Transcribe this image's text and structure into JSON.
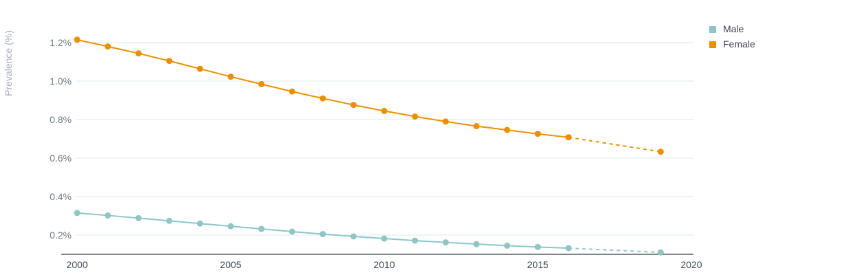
{
  "colors": {
    "male": "#8cc7c6",
    "female": "#ef8f00",
    "grid": "#dde8ea",
    "axis": "#2f3a47"
  },
  "chart_data": {
    "type": "line",
    "title": "",
    "xlabel": "",
    "ylabel": "Prevalence (%)",
    "xlim": [
      2000,
      2020
    ],
    "ylim": [
      0.1,
      1.3
    ],
    "x_ticks": [
      2000,
      2005,
      2010,
      2015,
      2020
    ],
    "x_tick_labels": [
      "2000",
      "2005",
      "2010",
      "2015",
      "2020"
    ],
    "y_ticks": [
      0.2,
      0.4,
      0.6,
      0.8,
      1.0,
      1.2
    ],
    "y_tick_labels": [
      "0.2%",
      "0.4%",
      "0.6%",
      "0.8%",
      "1.0%",
      "1.2%"
    ],
    "grid": true,
    "legend_position": "top-right",
    "series": [
      {
        "name": "Male",
        "color": "#8cc7c6",
        "x": [
          2000,
          2001,
          2002,
          2003,
          2004,
          2005,
          2006,
          2007,
          2008,
          2009,
          2010,
          2011,
          2012,
          2013,
          2014,
          2015,
          2016,
          2019
        ],
        "values": [
          0.315,
          0.302,
          0.288,
          0.274,
          0.26,
          0.246,
          0.232,
          0.218,
          0.205,
          0.193,
          0.182,
          0.171,
          0.162,
          0.153,
          0.145,
          0.138,
          0.132,
          0.11
        ],
        "dashed_from_index": 16
      },
      {
        "name": "Female",
        "color": "#ef8f00",
        "x": [
          2000,
          2001,
          2002,
          2003,
          2004,
          2005,
          2006,
          2007,
          2008,
          2009,
          2010,
          2011,
          2012,
          2013,
          2014,
          2015,
          2016,
          2019
        ],
        "values": [
          1.215,
          1.18,
          1.144,
          1.105,
          1.064,
          1.023,
          0.984,
          0.946,
          0.91,
          0.876,
          0.845,
          0.816,
          0.79,
          0.766,
          0.746,
          0.726,
          0.708,
          0.633
        ],
        "dashed_from_index": 16
      }
    ]
  }
}
